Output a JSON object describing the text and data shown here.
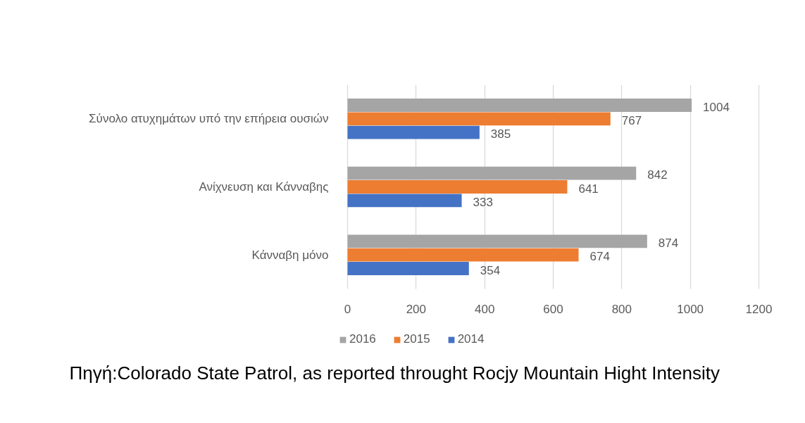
{
  "chart_data": {
    "type": "bar",
    "orientation": "horizontal",
    "categories": [
      "Σύνολο ατυχημάτων υπό την επήρεια ουσιών",
      "Ανίχνευση και Κάνναβης",
      "Κάνναβη μόνο"
    ],
    "series": [
      {
        "name": "2016",
        "color": "#a5a5a5",
        "values": [
          1004,
          842,
          874
        ]
      },
      {
        "name": "2015",
        "color": "#ed7d31",
        "values": [
          767,
          641,
          674
        ]
      },
      {
        "name": "2014",
        "color": "#4472c4",
        "values": [
          385,
          333,
          354
        ]
      }
    ],
    "xlim": [
      0,
      1200
    ],
    "xticks": [
      0,
      200,
      400,
      600,
      800,
      1000,
      1200
    ],
    "grid": "x",
    "legend": "bottom",
    "data_labels": true,
    "annotations": [
      "Πηγή:Colorado State Patrol, as reported throught Rocjy Mountain Hight Intensity"
    ]
  }
}
